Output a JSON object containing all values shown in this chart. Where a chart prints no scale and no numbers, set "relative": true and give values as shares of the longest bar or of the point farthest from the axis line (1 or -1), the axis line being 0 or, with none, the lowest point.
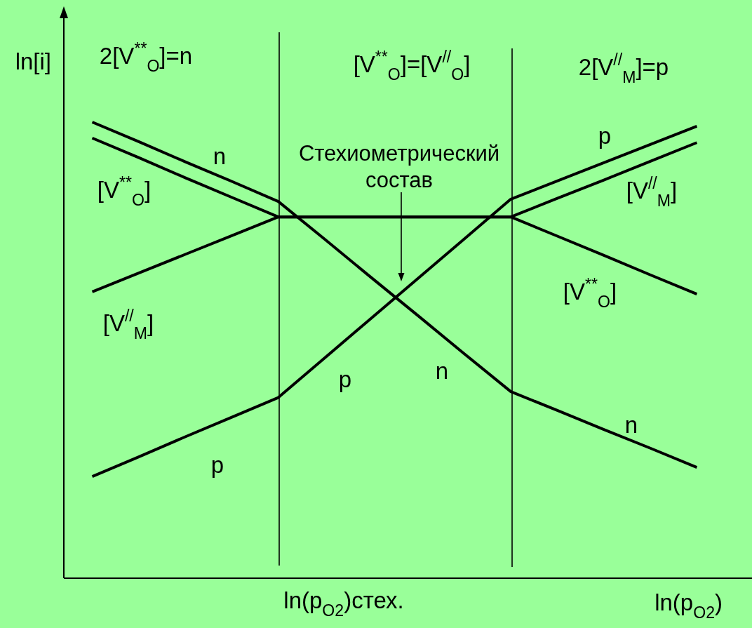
{
  "chart_data": {
    "type": "line",
    "relative": true,
    "xlabel": "ln(p$_{O2}$)",
    "ylabel": "ln[i]",
    "categories": [
      null,
      null,
      null,
      null,
      null,
      null,
      null,
      null,
      null,
      null,
      null,
      null,
      null,
      null
    ],
    "series": [
      {
        "name": "n",
        "color": "#000000",
        "values": [
          1,
          0.957,
          0.913,
          0.87,
          0.826,
          0.743,
          0.659,
          0.576,
          0.492,
          0.409,
          0.368,
          0.326,
          0.285,
          0.243
        ]
      },
      {
        "name": "p",
        "color": "#000000",
        "values": [
          0.223,
          0.266,
          0.31,
          0.353,
          0.396,
          0.483,
          0.57,
          0.657,
          0.744,
          0.831,
          0.871,
          0.911,
          0.951,
          0.991
        ]
      },
      {
        "name": "[V$^{**}$$_{O}$]",
        "color": "#000000",
        "values": [
          0.965,
          0.922,
          0.878,
          0.835,
          0.792,
          0.792,
          0.792,
          0.792,
          0.792,
          0.792,
          0.75,
          0.708,
          0.665,
          0.623
        ]
      },
      {
        "name": "[V$^{//}$$_{M}$]",
        "color": "#000000",
        "values": [
          0.628,
          0.669,
          0.71,
          0.751,
          0.792,
          0.792,
          0.792,
          0.792,
          0.792,
          0.792,
          0.833,
          0.873,
          0.914,
          0.955
        ]
      }
    ],
    "annotations": [
      "2[V$^{**}$$_{O}$]=n",
      "[V$^{**}$$_{O}$]=[V$^{//}$$_{O}$]",
      "2[V$^{//}$$_{M}$]=p",
      "ln(p$_{O2}$)стех.",
      "Стехиометрический состав",
      "n",
      "n",
      "p",
      "p",
      "[V$^{**}$$_{O}$]",
      "[V$^{//}$$_{M}$]"
    ]
  }
}
